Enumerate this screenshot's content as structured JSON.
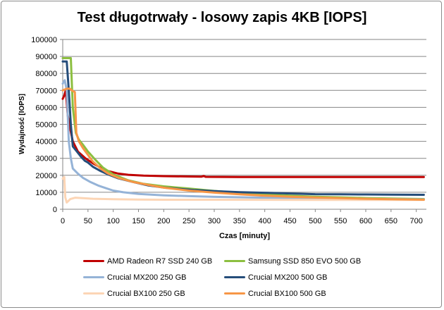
{
  "chart_data": {
    "type": "line",
    "title": "Test długotrwały - losowy zapis 4KB [IOPS]",
    "xlabel": "Czas [minuty]",
    "ylabel": "Wydajność [IOPS]",
    "xlim": [
      0,
      720
    ],
    "ylim": [
      0,
      100000
    ],
    "x_ticks": [
      0,
      50,
      100,
      150,
      200,
      250,
      300,
      350,
      400,
      450,
      500,
      550,
      600,
      650,
      700
    ],
    "y_ticks": [
      0,
      10000,
      20000,
      30000,
      40000,
      50000,
      60000,
      70000,
      80000,
      90000,
      100000
    ],
    "grid": true,
    "legend_position": "bottom",
    "series": [
      {
        "name": "AMD Radeon  R7 SSD 240 GB",
        "color": "#c00000",
        "points": [
          [
            0,
            65000
          ],
          [
            3,
            67000
          ],
          [
            6,
            70000
          ],
          [
            10,
            55000
          ],
          [
            15,
            47000
          ],
          [
            20,
            40000
          ],
          [
            30,
            34000
          ],
          [
            45,
            30000
          ],
          [
            60,
            27000
          ],
          [
            75,
            24500
          ],
          [
            90,
            22500
          ],
          [
            110,
            21000
          ],
          [
            130,
            20300
          ],
          [
            160,
            19800
          ],
          [
            200,
            19500
          ],
          [
            250,
            19300
          ],
          [
            275,
            19200
          ],
          [
            279,
            19600
          ],
          [
            283,
            19100
          ],
          [
            350,
            19000
          ],
          [
            450,
            19000
          ],
          [
            550,
            19000
          ],
          [
            650,
            19000
          ],
          [
            715,
            19000
          ]
        ]
      },
      {
        "name": "Samsung  SSD 850 EVO  500 GB",
        "color": "#8cbf40",
        "points": [
          [
            0,
            89000
          ],
          [
            8,
            89000
          ],
          [
            16,
            89000
          ],
          [
            20,
            60000
          ],
          [
            26,
            45000
          ],
          [
            32,
            41000
          ],
          [
            40,
            38000
          ],
          [
            50,
            34000
          ],
          [
            65,
            29000
          ],
          [
            80,
            24500
          ],
          [
            100,
            20500
          ],
          [
            130,
            17000
          ],
          [
            160,
            15000
          ],
          [
            200,
            13500
          ],
          [
            250,
            12200
          ],
          [
            300,
            10800
          ],
          [
            350,
            9700
          ],
          [
            400,
            8800
          ],
          [
            450,
            8000
          ],
          [
            500,
            7400
          ],
          [
            550,
            7000
          ],
          [
            600,
            6600
          ],
          [
            650,
            6300
          ],
          [
            715,
            6000
          ]
        ]
      },
      {
        "name": "Crucial MX200  250 GB",
        "color": "#95b3d7",
        "points": [
          [
            0,
            74000
          ],
          [
            4,
            76000
          ],
          [
            8,
            70000
          ],
          [
            12,
            40000
          ],
          [
            16,
            30000
          ],
          [
            20,
            24000
          ],
          [
            30,
            21000
          ],
          [
            40,
            18500
          ],
          [
            55,
            16000
          ],
          [
            70,
            14000
          ],
          [
            85,
            12500
          ],
          [
            100,
            11000
          ],
          [
            120,
            10000
          ],
          [
            150,
            9000
          ],
          [
            200,
            8200
          ],
          [
            250,
            7700
          ],
          [
            300,
            7300
          ],
          [
            400,
            6800
          ],
          [
            500,
            6400
          ],
          [
            600,
            6100
          ],
          [
            715,
            5800
          ]
        ]
      },
      {
        "name": "Crucial MX200  500 GB",
        "color": "#254d7a",
        "points": [
          [
            0,
            87000
          ],
          [
            8,
            87000
          ],
          [
            12,
            70000
          ],
          [
            16,
            50000
          ],
          [
            20,
            37000
          ],
          [
            28,
            34000
          ],
          [
            36,
            31000
          ],
          [
            44,
            28500
          ],
          [
            50,
            27500
          ],
          [
            60,
            25000
          ],
          [
            75,
            22500
          ],
          [
            90,
            20500
          ],
          [
            110,
            18200
          ],
          [
            140,
            16000
          ],
          [
            170,
            14000
          ],
          [
            200,
            12800
          ],
          [
            230,
            12000
          ],
          [
            260,
            11300
          ],
          [
            300,
            10700
          ],
          [
            350,
            10100
          ],
          [
            400,
            9700
          ],
          [
            450,
            9300
          ],
          [
            500,
            8900
          ],
          [
            550,
            8800
          ],
          [
            600,
            8700
          ],
          [
            650,
            8600
          ],
          [
            715,
            8500
          ]
        ]
      },
      {
        "name": "Crucial BX100  250 GB",
        "color": "#fcd5b5",
        "points": [
          [
            0,
            18000
          ],
          [
            3,
            19000
          ],
          [
            5,
            7000
          ],
          [
            8,
            4000
          ],
          [
            15,
            6000
          ],
          [
            25,
            6800
          ],
          [
            40,
            6500
          ],
          [
            60,
            6200
          ],
          [
            100,
            5900
          ],
          [
            150,
            5700
          ],
          [
            200,
            5600
          ],
          [
            300,
            5600
          ],
          [
            400,
            5550
          ],
          [
            500,
            5500
          ],
          [
            600,
            5500
          ],
          [
            715,
            5500
          ]
        ]
      },
      {
        "name": "Crucial BX100  500 GB",
        "color": "#f79646",
        "points": [
          [
            0,
            70000
          ],
          [
            8,
            71000
          ],
          [
            14,
            71000
          ],
          [
            18,
            70000
          ],
          [
            24,
            69000
          ],
          [
            27,
            45000
          ],
          [
            32,
            40000
          ],
          [
            40,
            36000
          ],
          [
            50,
            32000
          ],
          [
            60,
            28000
          ],
          [
            75,
            24000
          ],
          [
            90,
            21000
          ],
          [
            110,
            18500
          ],
          [
            140,
            16000
          ],
          [
            170,
            14300
          ],
          [
            200,
            12700
          ],
          [
            250,
            11000
          ],
          [
            300,
            9800
          ],
          [
            350,
            8800
          ],
          [
            400,
            8000
          ],
          [
            450,
            7400
          ],
          [
            500,
            6900
          ],
          [
            550,
            6500
          ],
          [
            600,
            6200
          ],
          [
            650,
            5900
          ],
          [
            715,
            5600
          ]
        ]
      }
    ]
  }
}
